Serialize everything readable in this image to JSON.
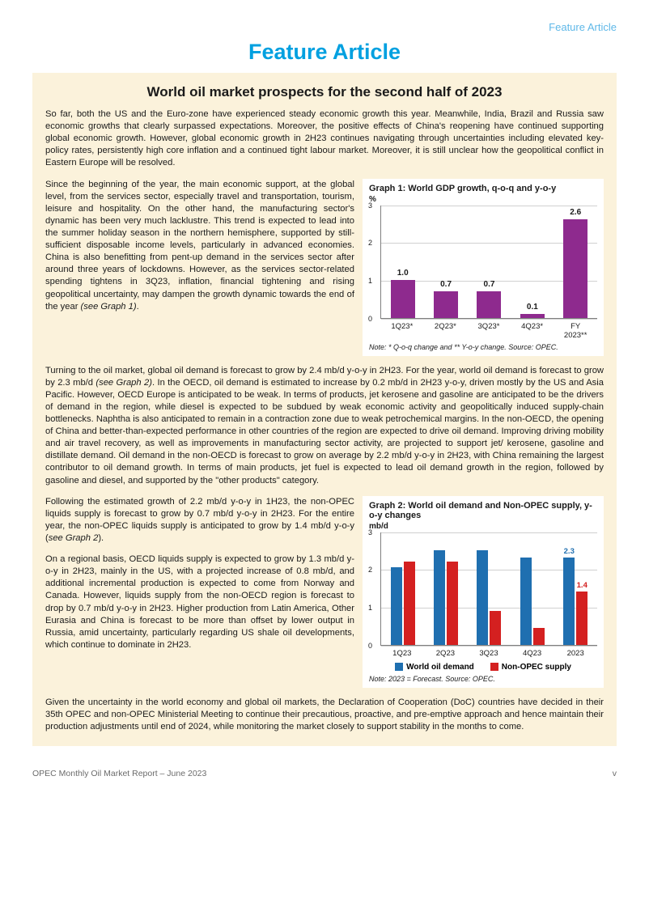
{
  "header_label": "Feature Article",
  "feature_title": "Feature Article",
  "article_title": "World oil market prospects for the second half of 2023",
  "p1": "So far, both the US and the Euro-zone have experienced steady economic growth this year. Meanwhile, India, Brazil and Russia saw economic growths that clearly surpassed expectations. Moreover, the positive effects of China's reopening have continued supporting global economic growth. However, global economic growth in 2H23 continues navigating through uncertainties including elevated key-policy rates, persistently high core inflation and a continued tight labour market. Moreover, it is still unclear how the geopolitical conflict in Eastern Europe will be resolved.",
  "p2_a": "Since the beginning of the year, the main economic support, at the global level, from the services sector, especially travel and transportation, tourism, leisure and hospitality. On the other hand, the manufacturing sector's dynamic has been very much lacklustre. This trend is expected to lead into the summer holiday season in the northern hemisphere, supported by still-sufficient disposable income levels, particularly in advanced economies. China is also benefitting from pent-up demand in the services sector after around three years of lockdowns. However, as the services sector-related spending tightens in 3Q23, inflation, financial tightening and rising geopolitical uncertainty, may dampen the growth dynamic towards the end of the year ",
  "p2_b": "(see Graph 1)",
  "p2_c": ".",
  "p3_a": "Turning to the oil market, global oil demand is forecast to grow by 2.4 mb/d y-o-y in 2H23. For the year, world oil demand is forecast to grow by 2.3 mb/d ",
  "p3_b": "(see Graph 2)",
  "p3_c": ". In the OECD, oil demand is estimated to increase by 0.2 mb/d in 2H23 y-o-y, driven mostly by the US and Asia Pacific. However, OECD Europe is anticipated to be weak. In terms of products, jet kerosene and gasoline are anticipated to be the drivers of demand in the region, while diesel is expected to be subdued by weak economic activity and geopolitically induced supply-chain bottlenecks. Naphtha is also anticipated to remain in a contraction zone due to weak petrochemical margins. In the non-OECD, the opening of China and better-than-expected performance in other countries of the region are expected to drive oil demand. Improving driving mobility and air travel recovery, as well as improvements in manufacturing sector activity, are projected to support jet/ kerosene, gasoline and distillate demand. Oil demand in the non-OECD is forecast to grow on average by 2.2 mb/d y-o-y in 2H23, with China remaining the largest contributor to oil demand growth. In terms of main products, jet fuel is expected to lead oil demand growth in the region, followed by gasoline and diesel, and supported by the \"other products\" category.",
  "p4_a": "Following the estimated growth of 2.2 mb/d y-o-y in 1H23, the non-OPEC liquids supply is forecast to grow by 0.7 mb/d y-o-y in 2H23. For the entire year, the non-OPEC liquids supply is anticipated to grow by 1.4 mb/d y-o-y (",
  "p4_b": "see Graph 2",
  "p4_c": ").",
  "p5": "On a regional basis, OECD liquids supply is expected to grow by 1.3 mb/d y-o-y in 2H23, mainly in the US, with a projected increase of 0.8 mb/d, and additional incremental production is expected to come from Norway and Canada. However, liquids supply from the non-OECD region is forecast to drop by 0.7 mb/d y-o-y in 2H23. Higher production from Latin America, Other Eurasia and China is forecast to be more than offset by lower output in Russia, amid uncertainty, particularly regarding US shale oil developments, which continue to dominate in 2H23.",
  "p6": "Given the uncertainty in the world economy and global oil markets, the Declaration of Cooperation (DoC) countries have decided in their 35th OPEC and non-OPEC Ministerial Meeting to continue their precautious, proactive, and pre-emptive approach and hence maintain their production adjustments until end of 2024, while monitoring the market closely to support stability in the months to come.",
  "footer_left": "OPEC Monthly Oil Market Report – June 2023",
  "footer_right": "v",
  "graph1": {
    "title": "Graph 1: World GDP growth, q-o-q and y-o-y",
    "unit": "%",
    "ymax": 3,
    "yticks": [
      "0",
      "1",
      "2",
      "3"
    ],
    "categories": [
      "1Q23*",
      "2Q23*",
      "3Q23*",
      "4Q23*",
      "FY 2023**"
    ],
    "values": [
      1.0,
      0.7,
      0.7,
      0.1,
      2.6
    ],
    "labels": [
      "1.0",
      "0.7",
      "0.7",
      "0.1",
      "2.6"
    ],
    "bar_color": "#8e2a8e",
    "note": "Note: * Q-o-q change and ** Y-o-y change. Source: OPEC."
  },
  "graph2": {
    "title": "Graph 2: World oil demand and Non-OPEC supply, y-o-y changes",
    "unit": "mb/d",
    "ymax": 3,
    "yticks": [
      "0",
      "1",
      "2",
      "3"
    ],
    "categories": [
      "1Q23",
      "2Q23",
      "3Q23",
      "4Q23",
      "2023"
    ],
    "series1_name": "World oil demand",
    "series1_color": "#1f6fb0",
    "series1_values": [
      2.05,
      2.5,
      2.5,
      2.3,
      2.3
    ],
    "series2_name": "Non-OPEC supply",
    "series2_color": "#d42020",
    "series2_values": [
      2.2,
      2.2,
      0.9,
      0.45,
      1.4
    ],
    "end_labels": {
      "s1": "2.3",
      "s2": "1.4"
    },
    "note": "Note: 2023 = Forecast. Source: OPEC."
  }
}
